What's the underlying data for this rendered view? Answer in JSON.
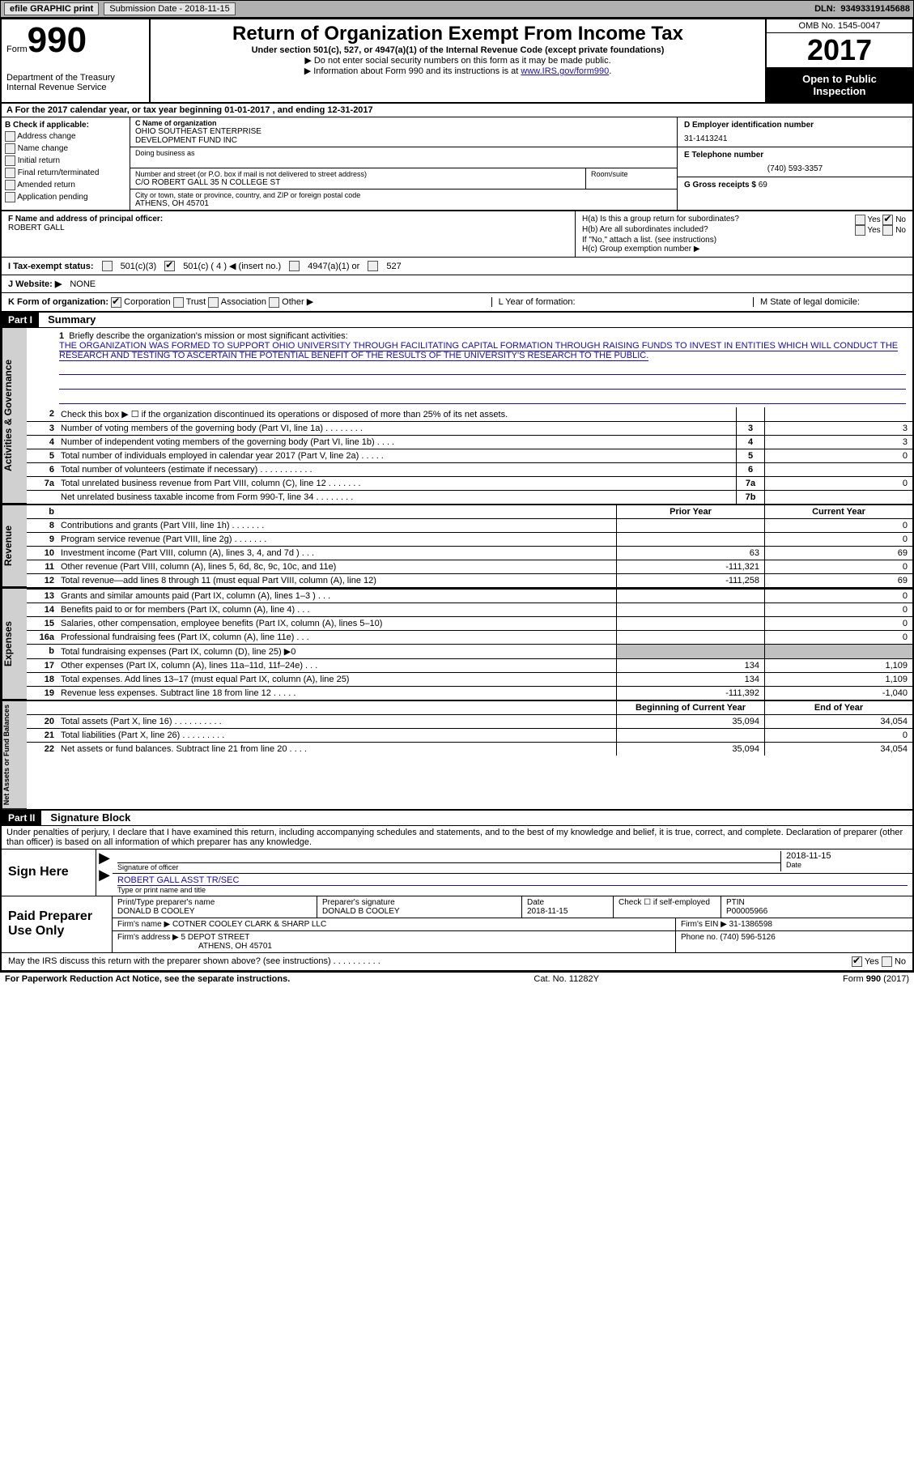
{
  "toolbar": {
    "efile": "efile GRAPHIC print",
    "sub_label": "Submission Date",
    "sub_date": "2018-11-15",
    "dln_label": "DLN:",
    "dln": "93493319145688"
  },
  "title": {
    "form_label": "Form",
    "form_num": "990",
    "dept1": "Department of the Treasury",
    "dept2": "Internal Revenue Service",
    "main": "Return of Organization Exempt From Income Tax",
    "sub1": "Under section 501(c), 527, or 4947(a)(1) of the Internal Revenue Code (except private foundations)",
    "sub2": "▶ Do not enter social security numbers on this form as it may be made public.",
    "sub3_pre": "▶ Information about Form 990 and its instructions is at ",
    "sub3_link": "www.IRS.gov/form990",
    "omb": "OMB No. 1545-0047",
    "year": "2017",
    "public1": "Open to Public",
    "public2": "Inspection"
  },
  "rowA": {
    "text_pre": "A  For the 2017 calendar year, or tax year beginning ",
    "begin": "01-01-2017",
    "mid": "  , and ending ",
    "end": "12-31-2017"
  },
  "colB": {
    "head": "B Check if applicable:",
    "items": [
      "Address change",
      "Name change",
      "Initial return",
      "Final return/terminated",
      "Amended return",
      "Application pending"
    ]
  },
  "colC": {
    "name_label": "C Name of organization",
    "name1": "OHIO SOUTHEAST ENTERPRISE",
    "name2": "DEVELOPMENT FUND INC",
    "dba_label": "Doing business as",
    "addr_label": "Number and street (or P.O. box if mail is not delivered to street address)",
    "room_label": "Room/suite",
    "addr": "C/O ROBERT GALL 35 N COLLEGE ST",
    "city_label": "City or town, state or province, country, and ZIP or foreign postal code",
    "city": "ATHENS, OH  45701"
  },
  "colD": {
    "ein_label": "D Employer identification number",
    "ein": "31-1413241",
    "phone_label": "E Telephone number",
    "phone": "(740) 593-3357",
    "gross_label": "G Gross receipts $",
    "gross": "69"
  },
  "rowF": {
    "label": "F Name and address of principal officer:",
    "name": "ROBERT GALL"
  },
  "rowH": {
    "a_label": "H(a)  Is this a group return for subordinates?",
    "b_label": "H(b)  Are all subordinates included?",
    "b_note": "If \"No,\" attach a list. (see instructions)",
    "c_label": "H(c)  Group exemption number ▶",
    "yes": "Yes",
    "no": "No"
  },
  "rowI": {
    "label": "I  Tax-exempt status:",
    "opts": [
      "501(c)(3)",
      "501(c) ( 4 ) ◀ (insert no.)",
      "4947(a)(1) or",
      "527"
    ]
  },
  "rowJ": {
    "label": "J  Website: ▶",
    "val": "NONE"
  },
  "rowK": {
    "label": "K Form of organization:",
    "opts": [
      "Corporation",
      "Trust",
      "Association",
      "Other ▶"
    ],
    "L": "L Year of formation:",
    "M": "M State of legal domicile:"
  },
  "part1": {
    "tag": "Part I",
    "title": "Summary"
  },
  "mission": {
    "num": "1",
    "label": "Briefly describe the organization's mission or most significant activities:",
    "text": "THE ORGANIZATION WAS FORMED TO SUPPORT OHIO UNIVERSITY THROUGH FACILITATING CAPITAL FORMATION THROUGH RAISING FUNDS TO INVEST IN ENTITIES WHICH WILL CONDUCT THE RESEARCH AND TESTING TO ASCERTAIN THE POTENTIAL BENEFIT OF THE RESULTS OF THE UNIVERSITY'S RESEARCH TO THE PUBLIC."
  },
  "gov_lines": [
    {
      "n": "2",
      "d": "Check this box ▶ ☐  if the organization discontinued its operations or disposed of more than 25% of its net assets.",
      "box": "",
      "v": ""
    },
    {
      "n": "3",
      "d": "Number of voting members of the governing body (Part VI, line 1a)   .   .   .   .   .   .   .   .",
      "box": "3",
      "v": "3"
    },
    {
      "n": "4",
      "d": "Number of independent voting members of the governing body (Part VI, line 1b)   .   .   .   .",
      "box": "4",
      "v": "3"
    },
    {
      "n": "5",
      "d": "Total number of individuals employed in calendar year 2017 (Part V, line 2a)   .   .   .   .   .",
      "box": "5",
      "v": "0"
    },
    {
      "n": "6",
      "d": "Total number of volunteers (estimate if necessary)   .   .   .   .   .   .   .   .   .   .   .",
      "box": "6",
      "v": ""
    },
    {
      "n": "7a",
      "d": "Total unrelated business revenue from Part VIII, column (C), line 12   .   .   .   .   .   .   .",
      "box": "7a",
      "v": "0"
    },
    {
      "n": "",
      "d": "Net unrelated business taxable income from Form 990-T, line 34   .   .   .   .   .   .   .   .",
      "box": "7b",
      "v": ""
    }
  ],
  "rev_header": {
    "b": "b",
    "py": "Prior Year",
    "cy": "Current Year"
  },
  "rev_lines": [
    {
      "n": "8",
      "d": "Contributions and grants (Part VIII, line 1h)   .   .   .   .   .   .   .",
      "py": "",
      "cy": "0"
    },
    {
      "n": "9",
      "d": "Program service revenue (Part VIII, line 2g)   .   .   .   .   .   .   .",
      "py": "",
      "cy": "0"
    },
    {
      "n": "10",
      "d": "Investment income (Part VIII, column (A), lines 3, 4, and 7d )   .   .   .",
      "py": "63",
      "cy": "69"
    },
    {
      "n": "11",
      "d": "Other revenue (Part VIII, column (A), lines 5, 6d, 8c, 9c, 10c, and 11e)",
      "py": "-111,321",
      "cy": "0"
    },
    {
      "n": "12",
      "d": "Total revenue—add lines 8 through 11 (must equal Part VIII, column (A), line 12)",
      "py": "-111,258",
      "cy": "69"
    }
  ],
  "exp_lines": [
    {
      "n": "13",
      "d": "Grants and similar amounts paid (Part IX, column (A), lines 1–3 )   .   .   .",
      "py": "",
      "cy": "0"
    },
    {
      "n": "14",
      "d": "Benefits paid to or for members (Part IX, column (A), line 4)   .   .   .",
      "py": "",
      "cy": "0"
    },
    {
      "n": "15",
      "d": "Salaries, other compensation, employee benefits (Part IX, column (A), lines 5–10)",
      "py": "",
      "cy": "0"
    },
    {
      "n": "16a",
      "d": "Professional fundraising fees (Part IX, column (A), line 11e)   .   .   .",
      "py": "",
      "cy": "0"
    },
    {
      "n": "b",
      "d": "Total fundraising expenses (Part IX, column (D), line 25) ▶0",
      "py": "SHADE",
      "cy": "SHADE"
    },
    {
      "n": "17",
      "d": "Other expenses (Part IX, column (A), lines 11a–11d, 11f–24e)   .   .   .",
      "py": "134",
      "cy": "1,109"
    },
    {
      "n": "18",
      "d": "Total expenses. Add lines 13–17 (must equal Part IX, column (A), line 25)",
      "py": "134",
      "cy": "1,109"
    },
    {
      "n": "19",
      "d": "Revenue less expenses. Subtract line 18 from line 12   .   .   .   .   .",
      "py": "-111,392",
      "cy": "-1,040"
    }
  ],
  "net_header": {
    "py": "Beginning of Current Year",
    "cy": "End of Year"
  },
  "net_lines": [
    {
      "n": "20",
      "d": "Total assets (Part X, line 16)   .   .   .   .   .   .   .   .   .   .",
      "py": "35,094",
      "cy": "34,054"
    },
    {
      "n": "21",
      "d": "Total liabilities (Part X, line 26)   .   .   .   .   .   .   .   .   .",
      "py": "",
      "cy": "0"
    },
    {
      "n": "22",
      "d": "Net assets or fund balances. Subtract line 21 from line 20   .   .   .   .",
      "py": "35,094",
      "cy": "34,054"
    }
  ],
  "vtabs": {
    "gov": "Activities & Governance",
    "rev": "Revenue",
    "exp": "Expenses",
    "net": "Net Assets or Fund Balances"
  },
  "part2": {
    "tag": "Part II",
    "title": "Signature Block"
  },
  "sig": {
    "perjury": "Under penalties of perjury, I declare that I have examined this return, including accompanying schedules and statements, and to the best of my knowledge and belief, it is true, correct, and complete. Declaration of preparer (other than officer) is based on all information of which preparer has any knowledge.",
    "sign_here": "Sign Here",
    "sig_officer": "Signature of officer",
    "date_label": "Date",
    "date": "2018-11-15",
    "name_title": "ROBERT GALL  ASST TR/SEC",
    "name_label": "Type or print name and title",
    "paid": "Paid Preparer Use Only",
    "prep_name_label": "Print/Type preparer's name",
    "prep_name": "DONALD B COOLEY",
    "prep_sig_label": "Preparer's signature",
    "prep_sig": "DONALD B COOLEY",
    "prep_date_label": "Date",
    "prep_date": "2018-11-15",
    "check_label": "Check ☐ if self-employed",
    "ptin_label": "PTIN",
    "ptin": "P00005966",
    "firm_name_label": "Firm's name    ▶",
    "firm_name": "COTNER COOLEY CLARK & SHARP LLC",
    "firm_ein_label": "Firm's EIN ▶",
    "firm_ein": "31-1386598",
    "firm_addr_label": "Firm's address ▶",
    "firm_addr1": "5 DEPOT STREET",
    "firm_addr2": "ATHENS, OH  45701",
    "phone_label": "Phone no.",
    "phone": "(740) 596-5126",
    "discuss": "May the IRS discuss this return with the preparer shown above? (see instructions)   .   .   .   .   .   .   .   .   .   .",
    "yes": "Yes",
    "no": "No"
  },
  "footer": {
    "left": "For Paperwork Reduction Act Notice, see the separate instructions.",
    "mid": "Cat. No. 11282Y",
    "right_pre": "Form ",
    "right_b": "990",
    "right_post": " (2017)"
  }
}
